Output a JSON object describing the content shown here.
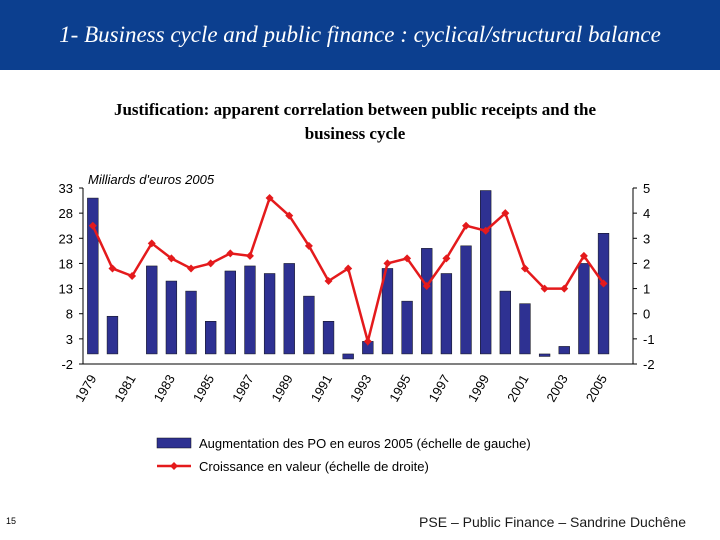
{
  "header": {
    "title": "1- Business cycle and public finance : cyclical/structural balance"
  },
  "subtitle": {
    "line1": "Justification: apparent correlation between public receipts and the",
    "line2": "business cycle"
  },
  "colors": {
    "banner": "#0c3f8f",
    "bar": "#2e3192",
    "line": "#e41a1c"
  },
  "chart_data": {
    "type": "bar",
    "unit_label": "Milliards d'euros 2005",
    "grid": false,
    "legend_position": "bottom",
    "x": [
      1979,
      1980,
      1981,
      1982,
      1983,
      1984,
      1985,
      1986,
      1987,
      1988,
      1989,
      1990,
      1991,
      1992,
      1993,
      1994,
      1995,
      1996,
      1997,
      1998,
      1999,
      2000,
      2001,
      2002,
      2003,
      2004,
      2005,
      2006
    ],
    "x_tick_labels": [
      "1979",
      "1981",
      "1983",
      "1985",
      "1987",
      "1989",
      "1991",
      "1993",
      "1995",
      "1997",
      "1999",
      "2001",
      "2003",
      "2005"
    ],
    "series": [
      {
        "name": "Augmentation des PO en euros 2005 (échelle de gauche)",
        "type": "bar",
        "axis": "left",
        "values": [
          31,
          7.5,
          null,
          17.5,
          14.5,
          12.5,
          6.5,
          16.5,
          17.5,
          16,
          18,
          11.5,
          6.5,
          -1,
          2.5,
          17,
          10.5,
          21,
          16,
          21.5,
          32.5,
          12.5,
          10,
          -0.5,
          1.5,
          18,
          24,
          null
        ]
      },
      {
        "name": "Croissance en valeur (échelle de droite)",
        "type": "line",
        "axis": "right",
        "values": [
          3.5,
          1.8,
          1.5,
          2.8,
          2.2,
          1.8,
          2.0,
          2.4,
          2.3,
          4.6,
          3.9,
          2.7,
          1.3,
          1.8,
          -1.1,
          2.0,
          2.2,
          1.1,
          2.2,
          3.5,
          3.3,
          4.0,
          1.8,
          1.0,
          1.0,
          2.3,
          1.2,
          null
        ]
      }
    ],
    "y_left": {
      "min": -2,
      "max": 33,
      "ticks": [
        33,
        28,
        23,
        18,
        13,
        8,
        3,
        -2
      ]
    },
    "y_right": {
      "min": -2,
      "max": 5,
      "ticks": [
        5,
        4,
        3,
        2,
        1,
        0,
        -1,
        -2
      ]
    }
  },
  "footer": {
    "page_number": "15",
    "text": "PSE – Public Finance – Sandrine Duchêne"
  }
}
